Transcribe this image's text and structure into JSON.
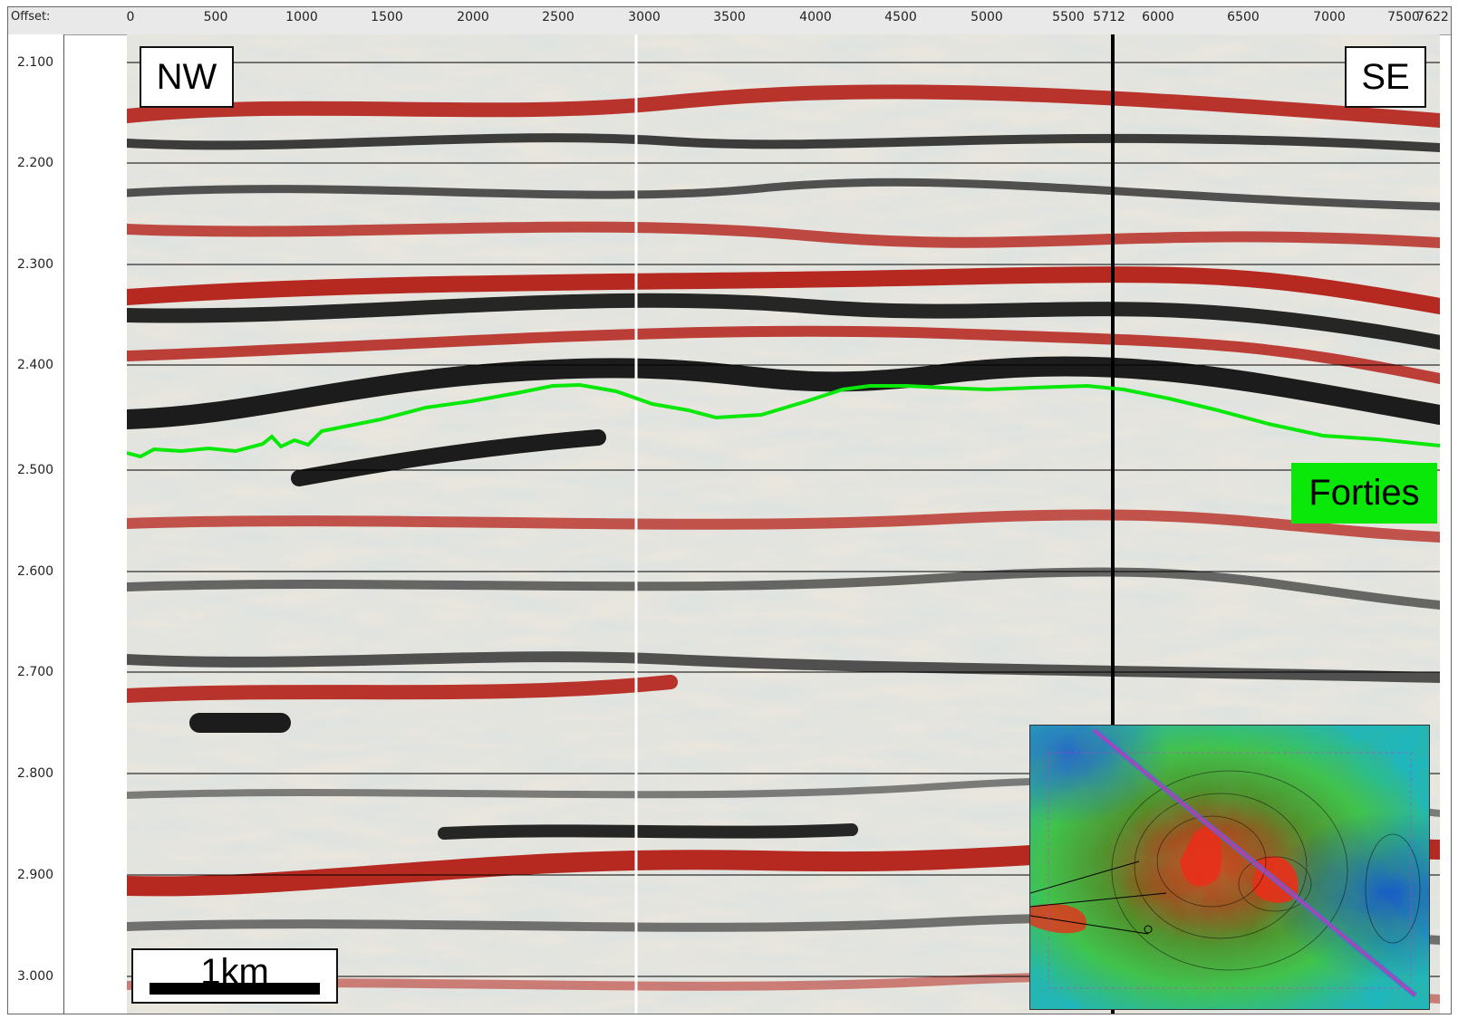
{
  "offset_label": "Offset:",
  "x_ticks": [
    "0",
    "500",
    "1000",
    "1500",
    "2000",
    "2500",
    "3000",
    "3500",
    "4000",
    "4500",
    "5000",
    "5500",
    "5712",
    "6000",
    "6500",
    "7000",
    "7500",
    "7622"
  ],
  "y_ticks": [
    "2.100",
    "2.200",
    "2.300",
    "2.400",
    "2.500",
    "2.600",
    "2.700",
    "2.800",
    "2.900",
    "3.000"
  ],
  "labels": {
    "nw": "NW",
    "se": "SE",
    "horizon": "Forties",
    "scale": "1km"
  },
  "colors": {
    "horizon": "#0ae80a",
    "trough": "#111111",
    "peak": "#b0140c"
  }
}
